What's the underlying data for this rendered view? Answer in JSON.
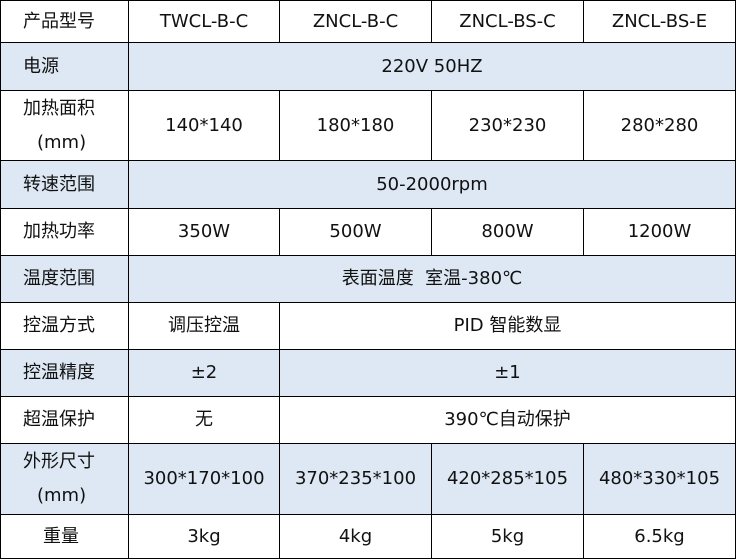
{
  "header": {
    "label": "产品型号",
    "models": [
      "TWCL-B-C",
      "ZNCL-B-C",
      "ZNCL-BS-C",
      "ZNCL-BS-E"
    ]
  },
  "colors": {
    "row_alt": "#dde8f4",
    "border": "#000000"
  },
  "rows": {
    "power": {
      "label": "电源",
      "value": "220V 50HZ"
    },
    "area": {
      "label_line1": "加热面积",
      "label_line2": "(mm)",
      "values": [
        "140*140",
        "180*180",
        "230*230",
        "280*280"
      ]
    },
    "speed": {
      "label": "转速范围",
      "value": "50-2000rpm"
    },
    "heat_power": {
      "label": "加热功率",
      "values": [
        "350W",
        "500W",
        "800W",
        "1200W"
      ]
    },
    "temp_range": {
      "label": "温度范围",
      "value": "表面温度  室温-380℃"
    },
    "control_mode": {
      "label": "控温方式",
      "first": "调压控温",
      "rest": "PID 智能数显"
    },
    "precision": {
      "label": "控温精度",
      "first": "±2",
      "rest": "±1"
    },
    "overheat": {
      "label": "超温保护",
      "first": "无",
      "rest": "390℃自动保护"
    },
    "dimensions": {
      "label_line1": "外形尺寸",
      "label_line2": "(mm)",
      "values": [
        "300*170*100",
        "370*235*100",
        "420*285*105",
        "480*330*105"
      ]
    },
    "weight": {
      "label": "重量",
      "values": [
        "3kg",
        "4kg",
        "5kg",
        "6.5kg"
      ]
    }
  }
}
